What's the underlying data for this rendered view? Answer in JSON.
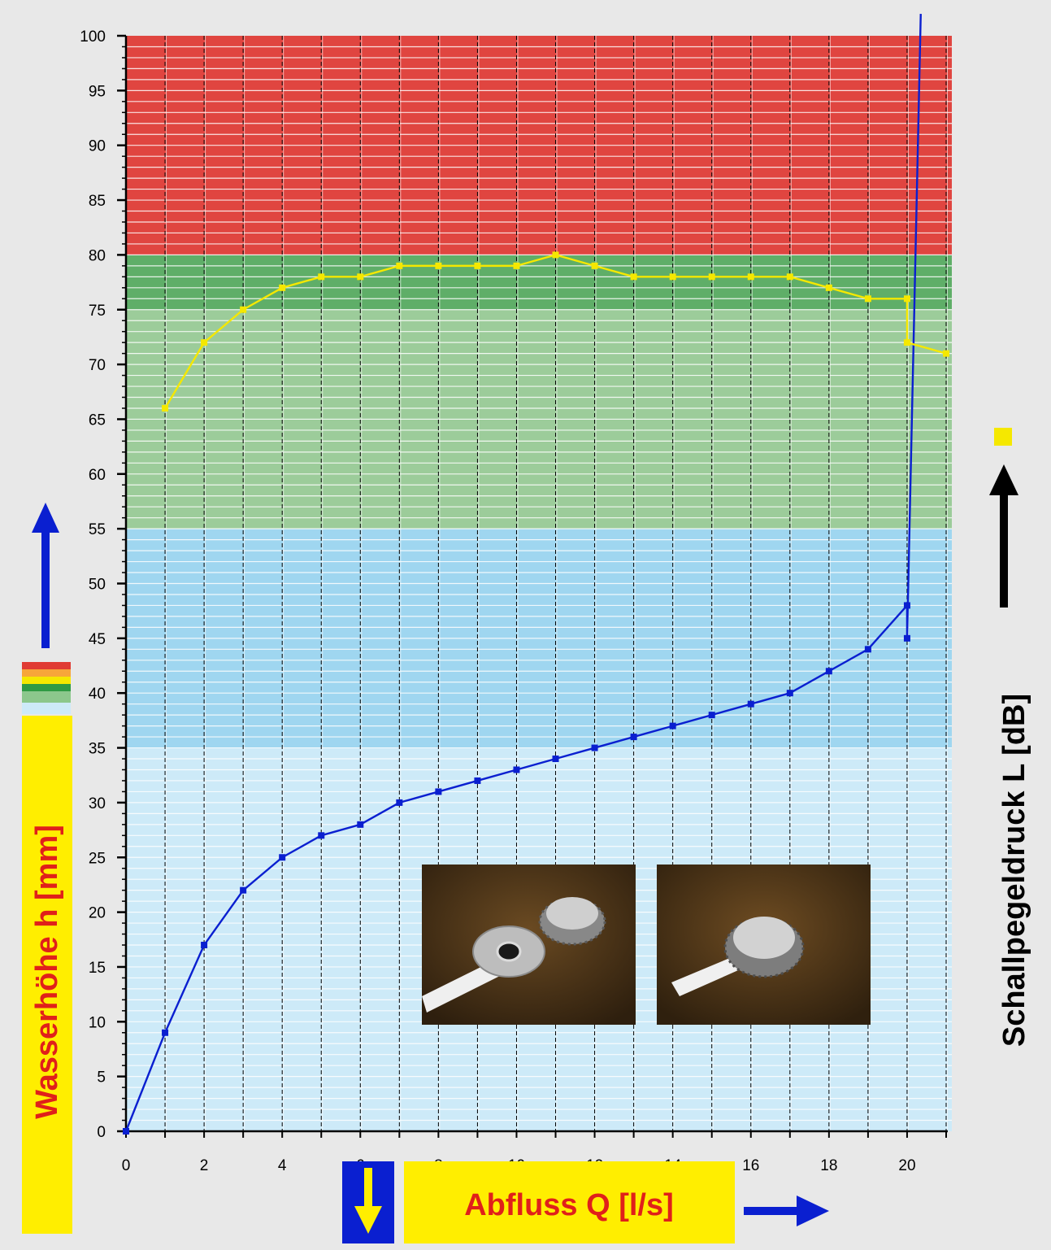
{
  "chart_data": {
    "type": "line",
    "xlabel": "Abfluss Q [l/s]",
    "ylabel": "Wasserhöhe h [mm]",
    "y2label": "Schallpegeldruck L [dB]",
    "xlim": [
      0,
      21
    ],
    "ylim": [
      0,
      100
    ],
    "x_ticks": [
      0,
      2,
      4,
      6,
      8,
      10,
      12,
      14,
      16,
      18,
      20
    ],
    "y_ticks": [
      0,
      5,
      10,
      15,
      20,
      25,
      30,
      35,
      40,
      45,
      50,
      55,
      60,
      65,
      70,
      75,
      80,
      85,
      90,
      95,
      100
    ],
    "grid": true,
    "bands": [
      {
        "from": 0,
        "to": 35,
        "color": "#cdeaf8"
      },
      {
        "from": 35,
        "to": 55,
        "color": "#9fd6f0"
      },
      {
        "from": 55,
        "to": 75,
        "color": "#9ccc9a"
      },
      {
        "from": 75,
        "to": 80,
        "color": "#5fae68"
      },
      {
        "from": 80,
        "to": 100,
        "color": "#e04540"
      }
    ],
    "series": [
      {
        "color": "#0a1fd0",
        "x": [
          0,
          1,
          2,
          3,
          4,
          5,
          6,
          7,
          8,
          9,
          10,
          11,
          12,
          13,
          14,
          15,
          16,
          17,
          18,
          19,
          20,
          20,
          20.35
        ],
        "y": [
          0,
          9,
          17,
          22,
          25,
          27,
          28,
          30,
          31,
          32,
          33,
          34,
          35,
          36,
          37,
          38,
          39,
          40,
          42,
          44,
          48,
          45,
          102
        ]
      },
      {
        "color": "#f5e800",
        "x": [
          1,
          2,
          3,
          4,
          5,
          6,
          7,
          8,
          9,
          10,
          11,
          12,
          13,
          14,
          15,
          16,
          17,
          18,
          19,
          20,
          20,
          21
        ],
        "y": [
          66,
          72,
          75,
          77,
          78,
          78,
          79,
          79,
          79,
          79,
          80,
          79,
          78,
          78,
          78,
          78,
          78,
          77,
          76,
          76,
          72,
          71
        ]
      }
    ]
  },
  "colors": {
    "page_background": "#e8e8e8",
    "label_highlight": "#ffee00",
    "label_text": "#e0201a",
    "arrow_blue": "#0a1fd0",
    "legend_swatches": [
      "#e03b34",
      "#f7a63a",
      "#f5e800",
      "#2f9a44",
      "#8cc78c",
      "#cdeaf8"
    ]
  },
  "icons": {
    "up_arrow": "arrow-up-icon",
    "right_arrow": "arrow-right-icon",
    "down_arrow": "arrow-down-icon",
    "sound_marker": "yellow-square-icon"
  }
}
